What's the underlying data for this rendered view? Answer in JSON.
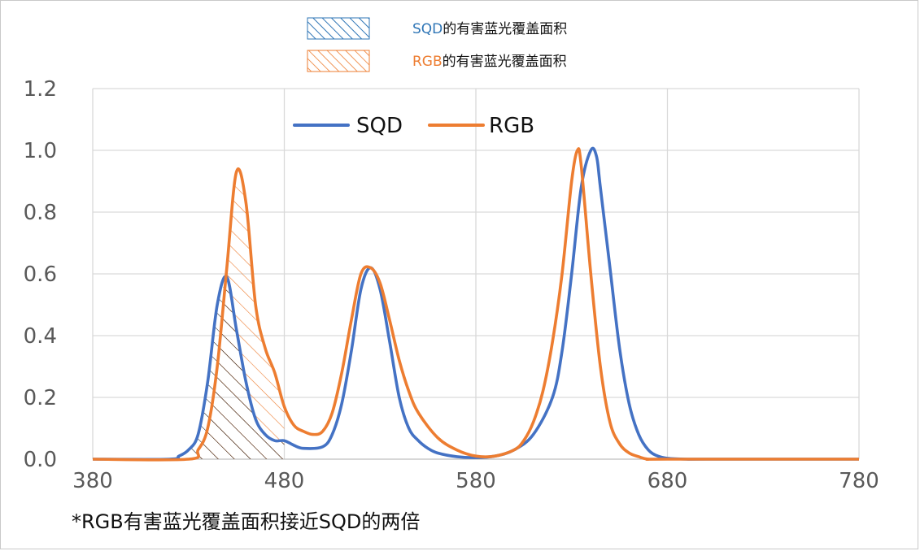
{
  "chart_data": {
    "type": "line",
    "title": "",
    "xlabel": "",
    "ylabel": "",
    "xlim": [
      380,
      780
    ],
    "ylim": [
      0,
      1.2
    ],
    "x_ticks": [
      380,
      480,
      580,
      680,
      780
    ],
    "y_ticks": [
      0.0,
      0.2,
      0.4,
      0.6,
      0.8,
      1.0,
      1.2
    ],
    "y_tick_labels": [
      "0.0",
      "0.2",
      "0.4",
      "0.6",
      "0.8",
      "1.0",
      "1.2"
    ],
    "grid": "on",
    "series": [
      {
        "name": "SQD",
        "color": "#4472C4",
        "x": [
          380,
          420,
          425,
          430,
          435,
          440,
          445,
          450,
          455,
          460,
          465,
          470,
          475,
          480,
          485,
          490,
          500,
          505,
          510,
          515,
          520,
          525,
          530,
          535,
          540,
          545,
          550,
          555,
          560,
          570,
          580,
          590,
          600,
          610,
          620,
          625,
          630,
          635,
          640,
          643,
          645,
          650,
          655,
          660,
          665,
          670,
          675,
          680,
          690,
          700,
          780
        ],
        "y": [
          0.0,
          0.0,
          0.01,
          0.03,
          0.08,
          0.25,
          0.5,
          0.59,
          0.42,
          0.25,
          0.13,
          0.08,
          0.06,
          0.06,
          0.045,
          0.035,
          0.04,
          0.08,
          0.18,
          0.35,
          0.55,
          0.62,
          0.55,
          0.38,
          0.2,
          0.1,
          0.06,
          0.035,
          0.02,
          0.008,
          0.005,
          0.01,
          0.03,
          0.08,
          0.2,
          0.35,
          0.6,
          0.88,
          1.0,
          0.98,
          0.88,
          0.62,
          0.36,
          0.18,
          0.08,
          0.03,
          0.01,
          0.003,
          0.0,
          0.0,
          0.0
        ]
      },
      {
        "name": "RGB",
        "color": "#ED7D31",
        "x": [
          380,
          430,
          435,
          440,
          445,
          450,
          455,
          460,
          465,
          470,
          475,
          480,
          485,
          490,
          495,
          500,
          505,
          510,
          515,
          520,
          525,
          530,
          535,
          540,
          545,
          550,
          560,
          570,
          580,
          590,
          600,
          605,
          610,
          615,
          620,
          625,
          630,
          633,
          635,
          640,
          645,
          650,
          655,
          660,
          665,
          670,
          680,
          780
        ],
        "y": [
          0.0,
          0.0,
          0.03,
          0.1,
          0.3,
          0.62,
          0.93,
          0.83,
          0.5,
          0.36,
          0.28,
          0.17,
          0.11,
          0.09,
          0.08,
          0.09,
          0.15,
          0.28,
          0.45,
          0.6,
          0.62,
          0.57,
          0.45,
          0.32,
          0.22,
          0.15,
          0.07,
          0.03,
          0.01,
          0.01,
          0.03,
          0.06,
          0.12,
          0.22,
          0.38,
          0.6,
          0.9,
          1.0,
          0.95,
          0.6,
          0.3,
          0.12,
          0.05,
          0.02,
          0.008,
          0.0,
          0.0,
          0.0
        ]
      }
    ],
    "shaded_areas": [
      {
        "series": "SQD",
        "x_range": [
          430,
          480
        ],
        "hatch": "diagonal"
      },
      {
        "series": "RGB",
        "x_range": [
          430,
          480
        ],
        "hatch": "diagonal"
      }
    ],
    "legend_placement": "top-center",
    "area_legend": [
      {
        "prefix": "SQD",
        "text": "的有害蓝光覆盖面积",
        "color": "#2E75B6"
      },
      {
        "prefix": "RGB",
        "text": "的有害蓝光覆盖面积",
        "color": "#ED7D31"
      }
    ],
    "footnote": "*RGB有害蓝光覆盖面积接近SQD的两倍"
  }
}
